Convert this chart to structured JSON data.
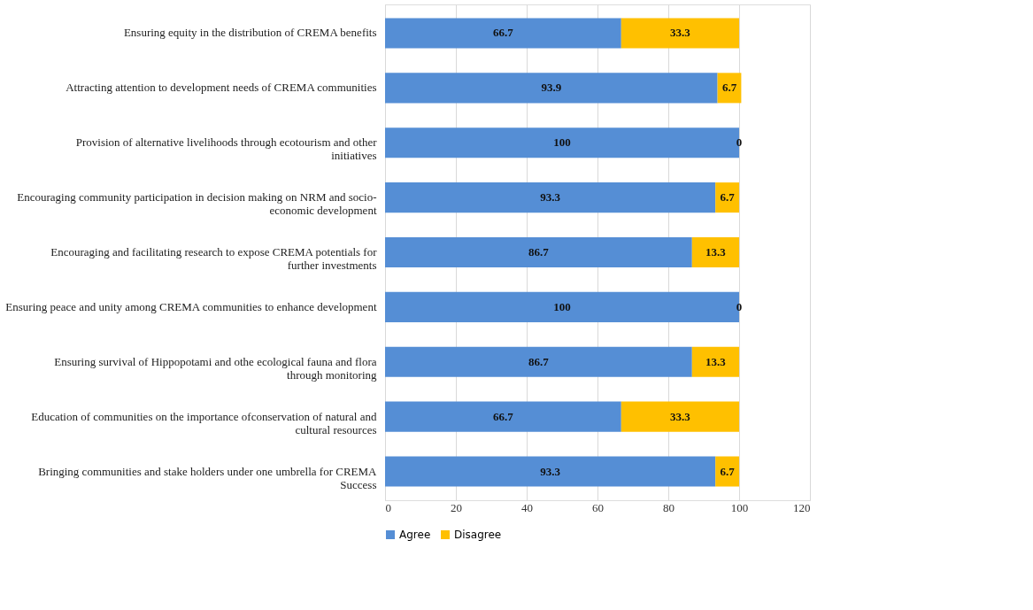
{
  "chart_data": {
    "type": "bar",
    "orientation": "horizontal",
    "stacked": true,
    "data_labels": true,
    "grid": "x",
    "legend": "bottom",
    "categories": [
      "Ensuring equity in the distribution of CREMA benefits",
      "Attracting attention to development needs of CREMA communities",
      "Provision of alternative livelihoods through ecotourism and other initiatives",
      "Encouraging community participation in decision making on NRM and socio-economic development",
      "Encouraging and facilitating research to expose CREMA potentials for further investments",
      "Ensuring peace and unity among CREMA communities to enhance development",
      "Ensuring survival of Hippopotami and othe ecological fauna and flora through monitoring",
      "Education of communities on the importance ofconservation of natural and cultural resources",
      "Bringing communities and stake holders under one umbrella for CREMA Success"
    ],
    "series": [
      {
        "name": "Agree",
        "color": "#558ed5",
        "values": [
          66.7,
          93.9,
          100,
          93.3,
          86.7,
          100,
          86.7,
          66.7,
          93.3
        ]
      },
      {
        "name": "Disagree",
        "color": "#ffc000",
        "values": [
          33.3,
          6.7,
          0,
          6.7,
          13.3,
          0,
          13.3,
          33.3,
          6.7
        ]
      }
    ],
    "xlim": [
      0,
      120
    ],
    "xticks": [
      0,
      20,
      40,
      60,
      80,
      100,
      120
    ]
  }
}
